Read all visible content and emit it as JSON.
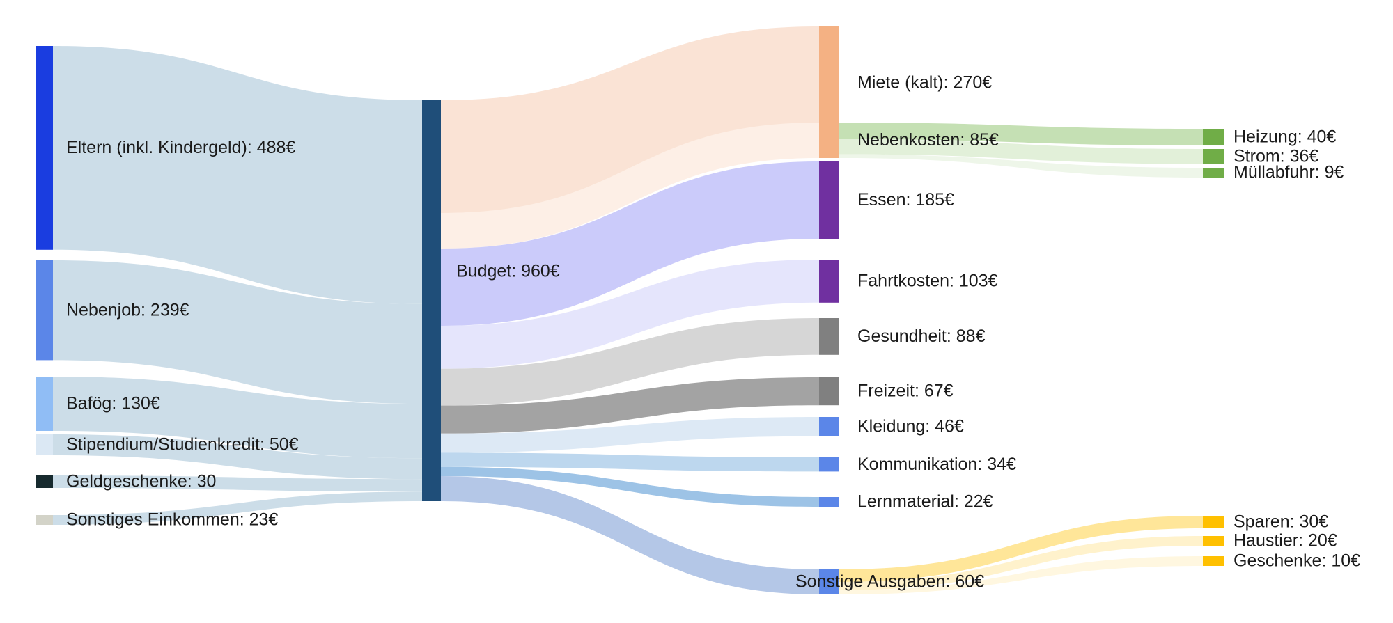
{
  "chart_data": {
    "type": "sankey",
    "unit": "€",
    "nodes": [
      {
        "id": "eltern",
        "label": "Eltern (inkl. Kindergeld): 488€",
        "value": 488,
        "color": "#1a3de0"
      },
      {
        "id": "nebenjob",
        "label": "Nebenjob: 239€",
        "value": 239,
        "color": "#5b86e8"
      },
      {
        "id": "bafoeg",
        "label": "Bafög: 130€",
        "value": 130,
        "color": "#90bdf5"
      },
      {
        "id": "stipendium",
        "label": "Stipendium/Studienkredit: 50€",
        "value": 50,
        "color": "#dbe8f4"
      },
      {
        "id": "geldgeschenke",
        "label": "Geldgeschenke: 30",
        "value": 30,
        "color": "#172a2e"
      },
      {
        "id": "sonstiges_einkommen",
        "label": "Sonstiges Einkommen: 23€",
        "value": 23,
        "color": "#d3d3c8"
      },
      {
        "id": "budget",
        "label": "Budget: 960€",
        "value": 960,
        "color": "#1f4e79"
      },
      {
        "id": "miete",
        "label": "Miete (kalt): 270€",
        "value": 270,
        "color": "#f4b183"
      },
      {
        "id": "nebenkosten",
        "label": "Nebenkosten: 85€",
        "value": 85,
        "color": "#f4b183"
      },
      {
        "id": "essen",
        "label": "Essen: 185€",
        "value": 185,
        "color": "#7030a0"
      },
      {
        "id": "fahrtkosten",
        "label": "Fahrtkosten: 103€",
        "value": 103,
        "color": "#7030a0"
      },
      {
        "id": "gesundheit",
        "label": "Gesundheit: 88€",
        "value": 88,
        "color": "#808080"
      },
      {
        "id": "freizeit",
        "label": "Freizeit: 67€",
        "value": 67,
        "color": "#808080"
      },
      {
        "id": "kleidung",
        "label": "Kleidung: 46€",
        "value": 46,
        "color": "#5b86e8"
      },
      {
        "id": "kommunikation",
        "label": "Kommunikation: 34€",
        "value": 34,
        "color": "#5b86e8"
      },
      {
        "id": "lernmaterial",
        "label": "Lernmaterial: 22€",
        "value": 22,
        "color": "#5b86e8"
      },
      {
        "id": "sonstige_ausgaben",
        "label": "Sonstige Ausgaben: 60€",
        "value": 60,
        "color": "#5b86e8"
      },
      {
        "id": "heizung",
        "label": "Heizung: 40€",
        "value": 40,
        "color": "#70ad47"
      },
      {
        "id": "strom",
        "label": "Strom: 36€",
        "value": 36,
        "color": "#70ad47"
      },
      {
        "id": "muellabfuhr",
        "label": "Müllabfuhr: 9€",
        "value": 9,
        "color": "#70ad47"
      },
      {
        "id": "sparen",
        "label": "Sparen: 30€",
        "value": 30,
        "color": "#ffc000"
      },
      {
        "id": "haustier",
        "label": "Haustier: 20€",
        "value": 20,
        "color": "#ffc000"
      },
      {
        "id": "geschenke",
        "label": "Geschenke: 10€",
        "value": 10,
        "color": "#ffc000"
      }
    ],
    "links": [
      {
        "source": "eltern",
        "target": "budget",
        "value": 488,
        "color": "#ccdde8"
      },
      {
        "source": "nebenjob",
        "target": "budget",
        "value": 239,
        "color": "#ccdde8"
      },
      {
        "source": "bafoeg",
        "target": "budget",
        "value": 130,
        "color": "#ccdde8"
      },
      {
        "source": "stipendium",
        "target": "budget",
        "value": 50,
        "color": "#ccdde8"
      },
      {
        "source": "geldgeschenke",
        "target": "budget",
        "value": 30,
        "color": "#ccdde8"
      },
      {
        "source": "sonstiges_einkommen",
        "target": "budget",
        "value": 23,
        "color": "#ccdde8"
      },
      {
        "source": "budget",
        "target": "miete",
        "value": 270,
        "color": "#fae3d5"
      },
      {
        "source": "budget",
        "target": "nebenkosten",
        "value": 85,
        "color": "#fdefe6"
      },
      {
        "source": "budget",
        "target": "essen",
        "value": 185,
        "color": "#cbcbfa"
      },
      {
        "source": "budget",
        "target": "fahrtkosten",
        "value": 103,
        "color": "#e5e5fc"
      },
      {
        "source": "budget",
        "target": "gesundheit",
        "value": 88,
        "color": "#d6d6d6"
      },
      {
        "source": "budget",
        "target": "freizeit",
        "value": 67,
        "color": "#a3a3a3"
      },
      {
        "source": "budget",
        "target": "kleidung",
        "value": 46,
        "color": "#dde9f5"
      },
      {
        "source": "budget",
        "target": "kommunikation",
        "value": 34,
        "color": "#bdd7ee"
      },
      {
        "source": "budget",
        "target": "lernmaterial",
        "value": 22,
        "color": "#9dc3e6"
      },
      {
        "source": "budget",
        "target": "sonstige_ausgaben",
        "value": 60,
        "color": "#b4c7e7"
      },
      {
        "source": "nebenkosten",
        "target": "heizung",
        "value": 40,
        "color": "#c5e0b4"
      },
      {
        "source": "nebenkosten",
        "target": "strom",
        "value": 36,
        "color": "#e2f0d9"
      },
      {
        "source": "nebenkosten",
        "target": "muellabfuhr",
        "value": 9,
        "color": "#eef6e9"
      },
      {
        "source": "sonstige_ausgaben",
        "target": "sparen",
        "value": 30,
        "color": "#ffe699"
      },
      {
        "source": "sonstige_ausgaben",
        "target": "haustier",
        "value": 20,
        "color": "#fff2cc"
      },
      {
        "source": "sonstige_ausgaben",
        "target": "geschenke",
        "value": 10,
        "color": "#fff7e0"
      }
    ]
  }
}
